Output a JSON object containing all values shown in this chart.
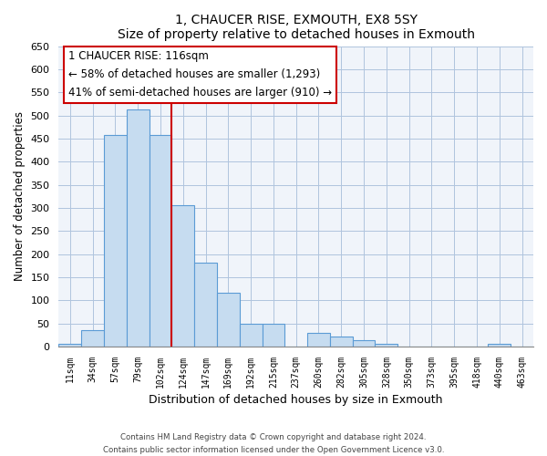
{
  "title": "1, CHAUCER RISE, EXMOUTH, EX8 5SY",
  "subtitle": "Size of property relative to detached houses in Exmouth",
  "xlabel": "Distribution of detached houses by size in Exmouth",
  "ylabel": "Number of detached properties",
  "bar_labels": [
    "11sqm",
    "34sqm",
    "57sqm",
    "79sqm",
    "102sqm",
    "124sqm",
    "147sqm",
    "169sqm",
    "192sqm",
    "215sqm",
    "237sqm",
    "260sqm",
    "282sqm",
    "305sqm",
    "328sqm",
    "350sqm",
    "373sqm",
    "395sqm",
    "418sqm",
    "440sqm",
    "463sqm"
  ],
  "bar_values": [
    7,
    35,
    457,
    512,
    457,
    305,
    181,
    117,
    50,
    50,
    0,
    29,
    21,
    13,
    7,
    0,
    0,
    0,
    0,
    7,
    0
  ],
  "bar_color": "#c6dcf0",
  "bar_edge_color": "#5b9bd5",
  "property_line_x": 4.5,
  "property_line_color": "#cc0000",
  "ylim": [
    0,
    650
  ],
  "yticks": [
    0,
    50,
    100,
    150,
    200,
    250,
    300,
    350,
    400,
    450,
    500,
    550,
    600,
    650
  ],
  "annotation_title": "1 CHAUCER RISE: 116sqm",
  "annotation_line1": "← 58% of detached houses are smaller (1,293)",
  "annotation_line2": "41% of semi-detached houses are larger (910) →",
  "annotation_box_color": "#ffffff",
  "annotation_box_edge": "#cc0000",
  "footer1": "Contains HM Land Registry data © Crown copyright and database right 2024.",
  "footer2": "Contains public sector information licensed under the Open Government Licence v3.0."
}
